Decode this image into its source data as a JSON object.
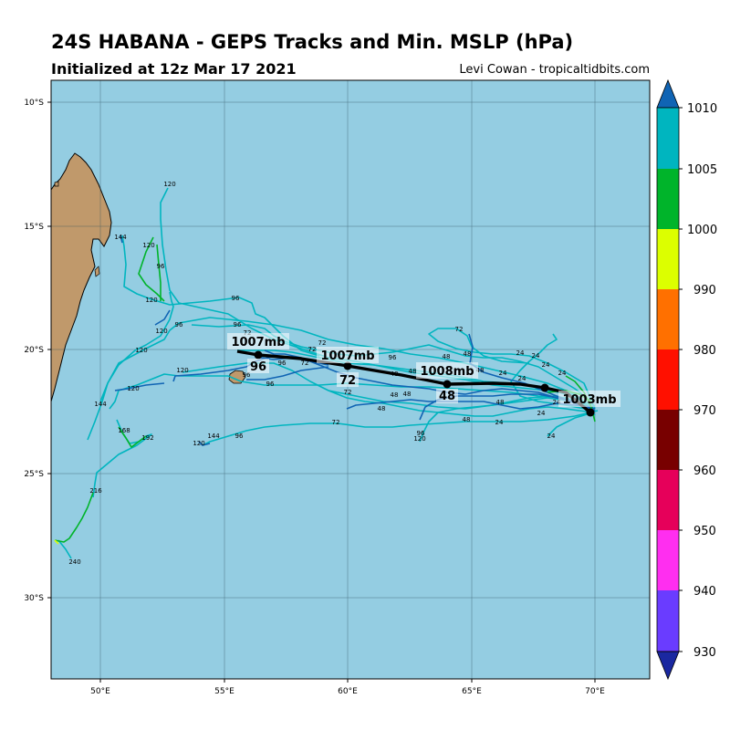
{
  "header": {
    "title": "24S HABANA - GEPS Tracks and Min. MSLP (hPa)",
    "subtitle": "Initialized at 12z Mar 17 2021",
    "credit": "Levi Cowan - tropicaltidbits.com"
  },
  "axes": {
    "lon_ticks": [
      "50°E",
      "55°E",
      "60°E",
      "65°E",
      "70°E"
    ],
    "lat_ticks": [
      "10°S",
      "15°S",
      "20°S",
      "25°S",
      "30°S"
    ]
  },
  "colorbar": {
    "levels": [
      "1010",
      "1005",
      "1000",
      "990",
      "980",
      "970",
      "960",
      "950",
      "940",
      "930"
    ],
    "colors": [
      "#1064b4",
      "#00b5bf",
      "#00b42a",
      "#dcff00",
      "#ff7000",
      "#ff1000",
      "#780000",
      "#e6005a",
      "#ff2ef0",
      "#6a3cff",
      "#1a28a0"
    ]
  },
  "map_colors": {
    "ocean": "#94cde2",
    "land": "#c0996b",
    "mean_track": "#000000"
  },
  "mean_track": {
    "labels": [
      {
        "mslp": "1003mb",
        "hour": ""
      },
      {
        "mslp": "1008mb",
        "hour": "48"
      },
      {
        "mslp": "1007mb",
        "hour": "72"
      },
      {
        "mslp": "1007mb",
        "hour": "96"
      }
    ]
  },
  "member_hour_labels": [
    "120",
    "144",
    "120",
    "96",
    "120",
    "96",
    "120",
    "96",
    "96",
    "120",
    "72",
    "72",
    "72",
    "96",
    "96",
    "120",
    "96",
    "144",
    "120",
    "168",
    "192",
    "144",
    "96",
    "120",
    "216",
    "240",
    "72",
    "72",
    "72",
    "96",
    "48",
    "48",
    "48",
    "48",
    "48",
    "48",
    "24",
    "24",
    "24",
    "24",
    "24",
    "24",
    "24",
    "24",
    "48",
    "48",
    "96",
    "120",
    "72",
    "48",
    "24",
    "24",
    "48"
  ]
}
